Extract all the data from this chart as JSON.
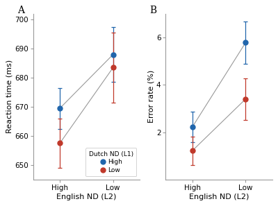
{
  "panel_A": {
    "title": "A",
    "ylabel": "Reaction time (ms)",
    "xlabel": "English ND (L2)",
    "xtick_labels": [
      "High",
      "Low"
    ],
    "ylim": [
      645,
      702
    ],
    "yticks": [
      650,
      660,
      670,
      680,
      690,
      700
    ],
    "high_nd_l1": {
      "x": [
        0,
        1
      ],
      "y": [
        669.5,
        688.0
      ],
      "yerr": [
        7.0,
        9.5
      ],
      "color": "#2166ac"
    },
    "low_nd_l1": {
      "x": [
        0,
        1
      ],
      "y": [
        657.5,
        683.5
      ],
      "yerr": [
        8.5,
        12.0
      ],
      "color": "#c0392b"
    }
  },
  "panel_B": {
    "title": "B",
    "ylabel": "Error rate (%)",
    "xlabel": "English ND (L2)",
    "xtick_labels": [
      "High",
      "Low"
    ],
    "ylim": [
      0,
      7.0
    ],
    "yticks": [
      2,
      4,
      6
    ],
    "high_nd_l1": {
      "x": [
        0,
        1
      ],
      "y": [
        2.22,
        5.78
      ],
      "yerr": [
        0.65,
        0.88
      ],
      "color": "#2166ac"
    },
    "low_nd_l1": {
      "x": [
        0,
        1
      ],
      "y": [
        1.22,
        3.4
      ],
      "yerr": [
        0.6,
        0.88
      ],
      "color": "#c0392b"
    }
  },
  "legend_title": "Dutch ND (L1)",
  "legend_labels": [
    "High",
    "Low"
  ],
  "legend_colors": [
    "#2166ac",
    "#c0392b"
  ],
  "line_color": "#999999",
  "marker": "o",
  "markersize": 5,
  "capsize": 2,
  "background_color": "#ffffff"
}
